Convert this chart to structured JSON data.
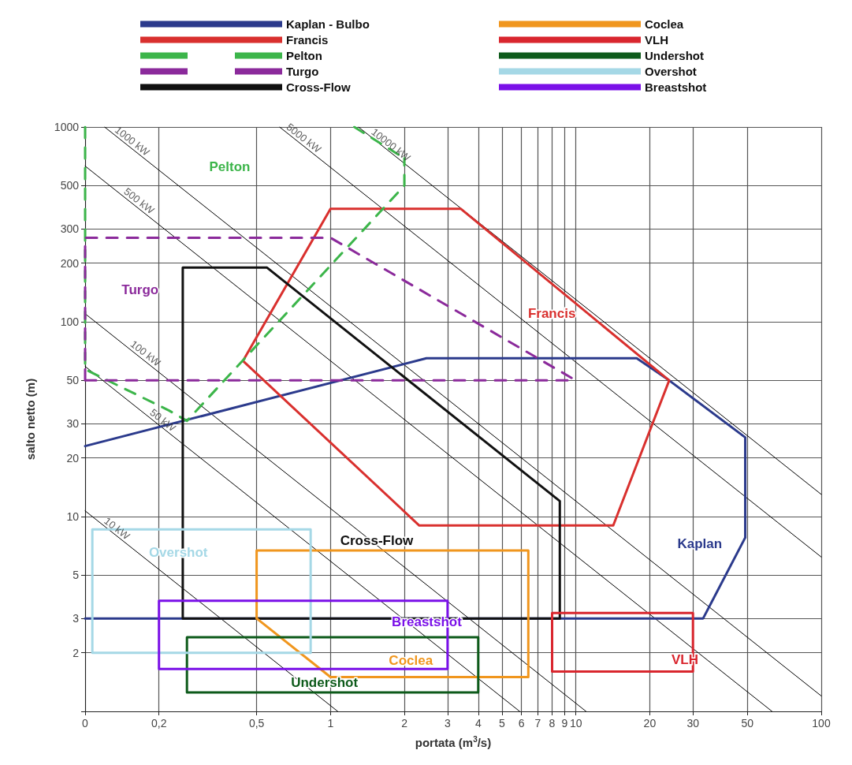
{
  "chart_data": {
    "type": "line",
    "xlabel": "portata (m$^{3}$/s)",
    "ylabel": "salto netto (m)",
    "log": "xy",
    "grid": true,
    "legend": "top",
    "marker": "none",
    "xlim": [
      0.1,
      100
    ],
    "ylim": [
      1,
      1000
    ],
    "xticks": [
      {
        "value": 0.1,
        "label": "0"
      },
      {
        "value": 0.2,
        "label": "0,2"
      },
      {
        "value": 0.5,
        "label": "0,5"
      },
      1,
      2,
      3,
      4,
      5,
      6,
      7,
      8,
      9,
      10,
      20,
      30,
      50,
      100
    ],
    "yticks": [
      {
        "value": 1,
        "label": null
      },
      2,
      3,
      5,
      10,
      20,
      30,
      50,
      100,
      200,
      300,
      500,
      1000
    ],
    "series": [
      {
        "name": "Kaplan - Bulbo",
        "color": "#2b3a8c",
        "x": [
          0.1,
          2.46,
          17.7,
          24,
          49,
          49,
          null,
          0.1,
          33,
          49
        ],
        "values": [
          23,
          65,
          65,
          50,
          25.5,
          7.8,
          null,
          3,
          3,
          7.8
        ]
      },
      {
        "name": "Francis",
        "color": "#d9302e",
        "x": [
          0.44,
          1,
          3.4,
          24,
          null,
          0.44,
          2.3,
          14.2,
          24
        ],
        "values": [
          63,
          380,
          380,
          50,
          null,
          63,
          9,
          9,
          50
        ]
      },
      {
        "name": "Pelton",
        "color": "#3cb54a",
        "line_style": "dashed",
        "x": [
          0.1,
          0.1,
          0.22,
          0.26,
          2,
          2,
          null,
          1.25,
          2
        ],
        "values": [
          1000,
          57,
          35,
          31,
          500,
          690,
          null,
          1000,
          690
        ]
      },
      {
        "name": "Turgo",
        "color": "#8b2a9b",
        "line_style": "dashed",
        "x": [
          0.1,
          0.1,
          1,
          10,
          null,
          0.1,
          10
        ],
        "values": [
          50,
          270,
          270,
          50,
          null,
          50,
          50
        ]
      },
      {
        "name": "Cross-Flow",
        "color": "#111111",
        "x": [
          0.25,
          0.25,
          0.55,
          8.6,
          8.6,
          null,
          0.25,
          8.6
        ],
        "values": [
          3,
          190,
          190,
          12,
          3,
          null,
          3,
          3
        ]
      },
      {
        "name": "Coclea",
        "color": "#f0961e",
        "x": [
          0.5,
          0.5,
          6.4,
          6.4,
          null,
          0.5,
          1,
          6.4
        ],
        "values": [
          3,
          6.7,
          6.7,
          1.5,
          null,
          3,
          1.5,
          1.5
        ]
      },
      {
        "name": "VLH",
        "color": "#d9262e",
        "x": [
          8,
          8,
          30,
          30,
          null,
          8,
          30
        ],
        "values": [
          1.6,
          3.2,
          3.2,
          1.6,
          null,
          1.6,
          1.6
        ]
      },
      {
        "name": "Undershot",
        "color": "#0d5a1a",
        "x": [
          0.26,
          0.26,
          4,
          4,
          null,
          0.26,
          4
        ],
        "values": [
          1.25,
          2.4,
          2.4,
          1.25,
          null,
          1.25,
          1.25
        ]
      },
      {
        "name": "Overshot",
        "color": "#a5d8e6",
        "x": [
          0.107,
          0.107,
          0.83,
          0.83,
          null,
          0.107,
          0.83
        ],
        "values": [
          2,
          8.6,
          8.6,
          2,
          null,
          2,
          2
        ]
      },
      {
        "name": "Breastshot",
        "color": "#7a10e8",
        "x": [
          0.2,
          0.2,
          3,
          3,
          null,
          0.2,
          3
        ],
        "values": [
          1.65,
          3.7,
          3.7,
          1.65,
          null,
          1.65,
          1.65
        ]
      },
      {
        "color": "#000000",
        "x": [
          0.1,
          1.07
        ],
        "values": [
          10.7,
          1
        ]
      },
      {
        "color": "#000000",
        "x": [
          0.1,
          5.9
        ],
        "values": [
          59,
          1
        ]
      },
      {
        "color": "#000000",
        "x": [
          0.1,
          11
        ],
        "values": [
          110,
          1
        ]
      },
      {
        "color": "#000000",
        "x": [
          0.1,
          63
        ],
        "values": [
          630,
          1
        ]
      },
      {
        "color": "#000000",
        "x": [
          0.12,
          100
        ],
        "values": [
          1000,
          1.2
        ]
      },
      {
        "color": "#000000",
        "x": [
          0.62,
          100
        ],
        "values": [
          1000,
          6.2
        ]
      },
      {
        "color": "#000000",
        "x": [
          1.3,
          100
        ],
        "values": [
          1000,
          13
        ]
      }
    ],
    "annotations": [
      {
        "text": "10 kW",
        "x": 0.13,
        "y": 8.2
      },
      {
        "text": "50 kW",
        "x": 0.2,
        "y": 29.5
      },
      {
        "text": "100 kW",
        "x": 0.17,
        "y": 65
      },
      {
        "text": "500 kW",
        "x": 0.16,
        "y": 394
      },
      {
        "text": "1000 kW",
        "x": 0.15,
        "y": 800
      },
      {
        "text": "5000 kW",
        "x": 0.75,
        "y": 827
      },
      {
        "text": "10000 kW",
        "x": 1.7,
        "y": 765
      },
      "Pelton",
      "Turgo",
      "Francis",
      "Kaplan",
      "Cross-Flow",
      "Overshot",
      "Breastshot",
      "Coclea",
      "Undershot",
      "VLH"
    ]
  }
}
